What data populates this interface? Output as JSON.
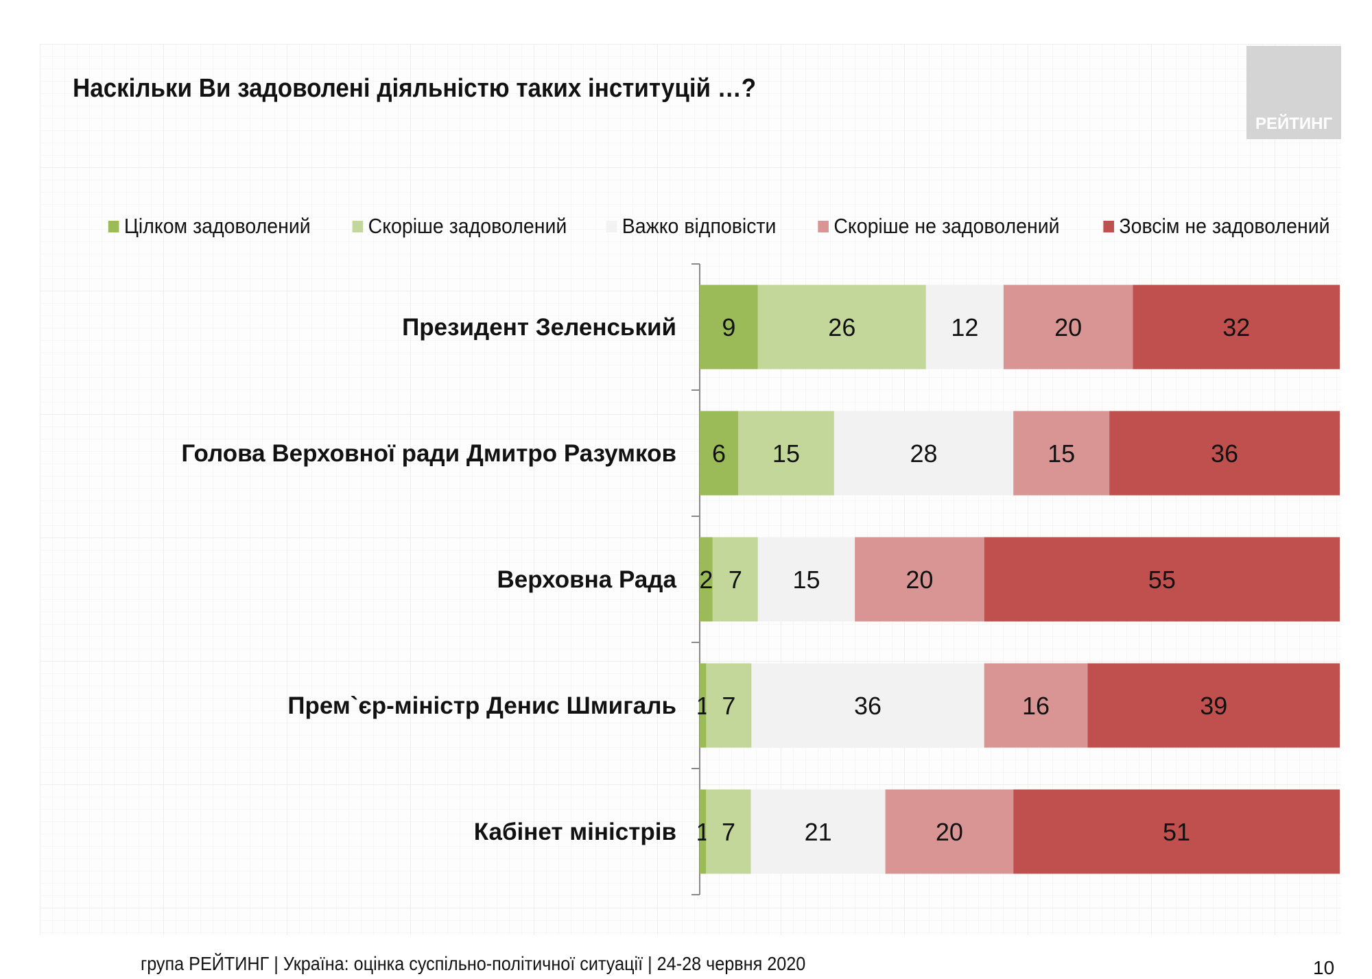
{
  "logo_text": "РЕЙТИНГ",
  "footer": "група РЕЙТИНГ |  Україна: оцінка суспільно-політичної  ситуації  | 24-28 червня  2020",
  "page_number": "10",
  "chart_data": {
    "type": "bar",
    "orientation": "horizontal-stacked-100",
    "title": "Наскільки Ви задоволені діяльністю таких інституцій …?",
    "legend_placement": "top",
    "categories": [
      "Президент Зеленський",
      "Голова Верховної ради Дмитро Разумков",
      "Верховна Рада",
      "Прем`єр-міністр Денис Шмигаль",
      "Кабінет міністрів"
    ],
    "series": [
      {
        "name": "Цілком задоволений",
        "color": "#9bbb59",
        "values": [
          9,
          6,
          2,
          1,
          1
        ]
      },
      {
        "name": "Скоріше задоволений",
        "color": "#c4d79b",
        "values": [
          26,
          15,
          7,
          7,
          7
        ]
      },
      {
        "name": "Важко відповісти",
        "color": "#f2f2f2",
        "values": [
          12,
          28,
          15,
          36,
          21
        ]
      },
      {
        "name": "Скоріше не задоволений",
        "color": "#d99594",
        "values": [
          20,
          15,
          20,
          16,
          20
        ]
      },
      {
        "name": "Зовсім не задоволений",
        "color": "#c0504d",
        "values": [
          32,
          36,
          55,
          39,
          51
        ]
      }
    ],
    "grid": false
  }
}
